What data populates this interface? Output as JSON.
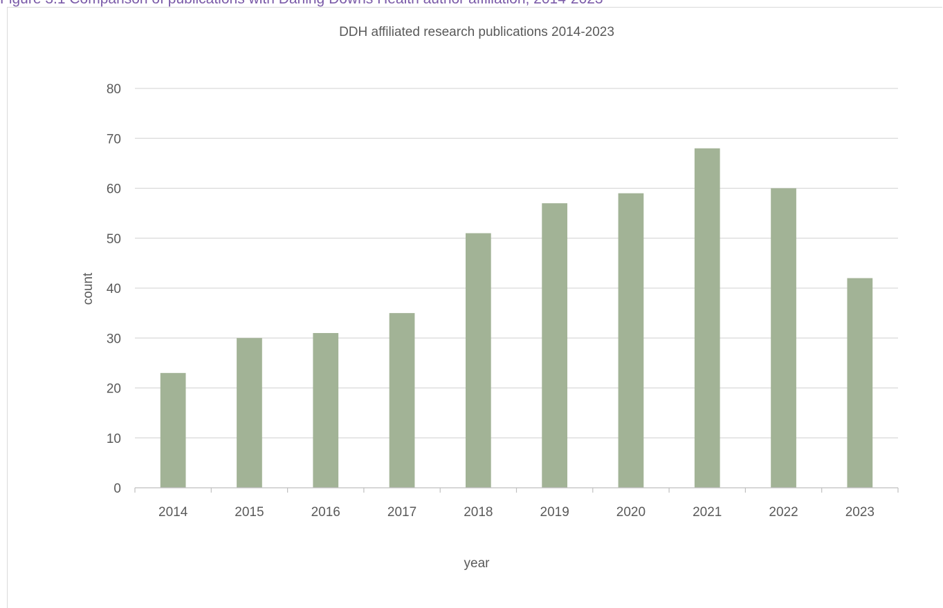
{
  "figure_caption": "Figure 3.1 Comparison of publications with Darling Downs Health author affiliation, 2014-2023",
  "chart_data": {
    "type": "bar",
    "title": "DDH affiliated research publications 2014-2023",
    "xlabel": "year",
    "ylabel": "count",
    "categories": [
      "2014",
      "2015",
      "2016",
      "2017",
      "2018",
      "2019",
      "2020",
      "2021",
      "2022",
      "2023"
    ],
    "values": [
      23,
      30,
      31,
      35,
      51,
      57,
      59,
      68,
      60,
      42
    ],
    "ylim": [
      0,
      80
    ],
    "yticks": [
      0,
      10,
      20,
      30,
      40,
      50,
      60,
      70,
      80
    ],
    "grid": true,
    "legend": "none",
    "bar_color": "#a2b396",
    "grid_color": "#d9d9d9",
    "axis_color": "#bfbfbf",
    "text_color": "#595959"
  }
}
